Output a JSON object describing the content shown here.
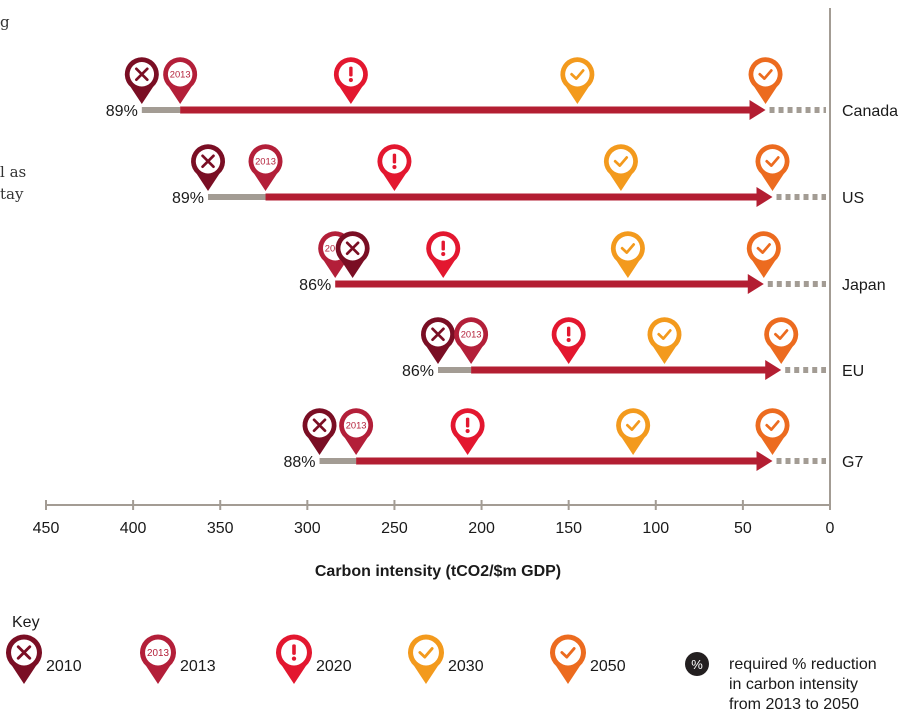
{
  "side_text": [
    {
      "text": "g"
    },
    {
      "text": "l as"
    },
    {
      "text": "tay"
    }
  ],
  "chart_data": {
    "type": "dumbbell",
    "xlabel": "Carbon intensity (tCO2/$m GDP)",
    "xlim": [
      450,
      0
    ],
    "x_ticks": [
      "450",
      "400",
      "350",
      "300",
      "250",
      "200",
      "150",
      "100",
      "50",
      "0"
    ],
    "countries": [
      {
        "name": "Canada",
        "pct": "89%",
        "y2010": 395,
        "y2013": 373,
        "y2020": 275,
        "y2030": 145,
        "y2050": 37
      },
      {
        "name": "US",
        "pct": "89%",
        "y2010": 357,
        "y2013": 324,
        "y2020": 250,
        "y2030": 120,
        "y2050": 33
      },
      {
        "name": "Japan",
        "pct": "86%",
        "y2010": 274,
        "y2013": 284,
        "y2020": 222,
        "y2030": 116,
        "y2050": 38
      },
      {
        "name": "EU",
        "pct": "86%",
        "y2010": 225,
        "y2013": 206,
        "y2020": 150,
        "y2030": 95,
        "y2050": 28
      },
      {
        "name": "G7",
        "pct": "88%",
        "y2010": 293,
        "y2013": 272,
        "y2020": 208,
        "y2030": 113,
        "y2050": 33
      }
    ]
  },
  "key": {
    "title": "Key",
    "items": [
      {
        "icon": "x-pin",
        "label": "2010"
      },
      {
        "icon": "2013-pin",
        "label": "2013",
        "pin_text": "2013"
      },
      {
        "icon": "exclamation-pin",
        "label": "2020"
      },
      {
        "icon": "check-pin",
        "label": "2030"
      },
      {
        "icon": "check-pin",
        "label": "2050"
      }
    ],
    "pct_symbol": "%",
    "pct_description": [
      "required % reduction",
      "in carbon intensity",
      "from 2013 to 2050"
    ]
  },
  "colors": {
    "c2010": "#7a0e24",
    "c2013": "#b31f39",
    "c2020": "#e3172f",
    "c2030": "#f39a1d",
    "c2050": "#ec6b1f",
    "arrow": "#b31e32",
    "grey": "#a39c94",
    "axis": "#a39c94",
    "text": "#1a1a1a"
  }
}
